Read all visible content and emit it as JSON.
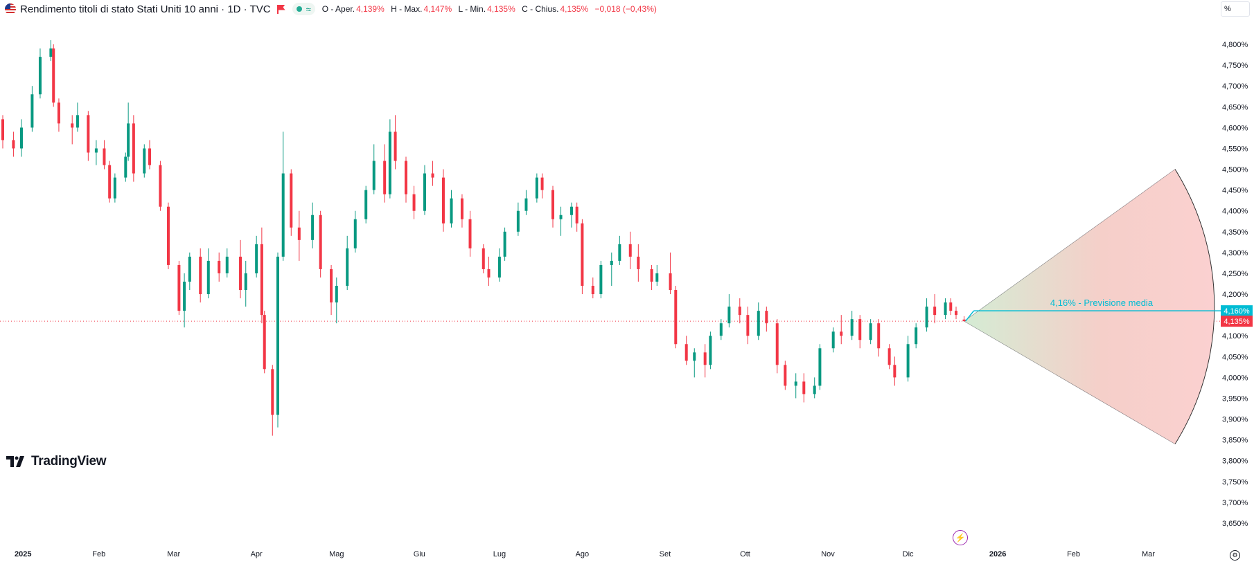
{
  "header": {
    "title": "Rendimento titoli di stato Stati Uniti 10 anni · 1D · TVC",
    "approx_symbol": "≈",
    "ohlc": {
      "o_label": "O - Aper.",
      "o_value": "4,139%",
      "h_label": "H - Max.",
      "h_value": "4,147%",
      "l_label": "L - Min.",
      "l_value": "4,135%",
      "c_label": "C - Chius.",
      "c_value": "4,135%",
      "change": "−0,018 (−0,43%)"
    }
  },
  "scale_button": "%",
  "branding": {
    "logo_text": "TradingView"
  },
  "colors": {
    "up": "#089981",
    "down": "#f23645",
    "forecast_line": "#00bcd4",
    "accent": "#2962ff"
  },
  "chart_data": {
    "type": "candlestick",
    "title": "Rendimento titoli di stato Stati Uniti 10 anni · 1D · TVC",
    "xlabel": "",
    "ylabel": "",
    "ylim": [
      3.62,
      4.84
    ],
    "y_ticks": [
      "4,800%",
      "4,750%",
      "4,700%",
      "4,650%",
      "4,600%",
      "4,550%",
      "4,500%",
      "4,450%",
      "4,400%",
      "4,350%",
      "4,300%",
      "4,250%",
      "4,200%",
      "4,150%",
      "4,100%",
      "4,050%",
      "4,000%",
      "3,950%",
      "3,900%",
      "3,850%",
      "3,800%",
      "3,750%",
      "3,700%",
      "3,650%"
    ],
    "y_tick_values": [
      4.8,
      4.75,
      4.7,
      4.65,
      4.6,
      4.55,
      4.5,
      4.45,
      4.4,
      4.35,
      4.3,
      4.25,
      4.2,
      4.15,
      4.1,
      4.05,
      4.0,
      3.95,
      3.9,
      3.85,
      3.8,
      3.75,
      3.7,
      3.65
    ],
    "x_ticks": [
      {
        "label": "2025",
        "date": "2025-01-01",
        "bold": true
      },
      {
        "label": "Feb",
        "date": "2025-02-01"
      },
      {
        "label": "Mar",
        "date": "2025-03-01"
      },
      {
        "label": "Apr",
        "date": "2025-04-01"
      },
      {
        "label": "Mag",
        "date": "2025-05-01"
      },
      {
        "label": "Giu",
        "date": "2025-06-01"
      },
      {
        "label": "Lug",
        "date": "2025-07-01"
      },
      {
        "label": "Ago",
        "date": "2025-08-01"
      },
      {
        "label": "Set",
        "date": "2025-09-01"
      },
      {
        "label": "Ott",
        "date": "2025-10-01"
      },
      {
        "label": "Nov",
        "date": "2025-11-01"
      },
      {
        "label": "Dic",
        "date": "2025-12-01"
      },
      {
        "label": "2026",
        "date": "2026-01-01",
        "bold": true
      },
      {
        "label": "Feb",
        "date": "2026-02-01"
      },
      {
        "label": "Mar",
        "date": "2026-03-01"
      }
    ],
    "x_range": [
      "2024-12-27",
      "2026-03-25"
    ],
    "series": [
      {
        "points": [
          [
            "2024-12-27",
            4.62,
            4.63,
            4.55,
            4.57
          ],
          [
            "2024-12-31",
            4.57,
            4.59,
            4.53,
            4.55
          ],
          [
            "2025-01-03",
            4.55,
            4.62,
            4.53,
            4.6
          ],
          [
            "2025-01-07",
            4.6,
            4.7,
            4.59,
            4.68
          ],
          [
            "2025-01-10",
            4.68,
            4.79,
            4.67,
            4.77
          ],
          [
            "2025-01-14",
            4.77,
            4.81,
            4.76,
            4.79
          ],
          [
            "2025-01-15",
            4.79,
            4.8,
            4.65,
            4.66
          ],
          [
            "2025-01-17",
            4.66,
            4.67,
            4.59,
            4.61
          ],
          [
            "2025-01-22",
            4.61,
            4.63,
            4.56,
            4.6
          ],
          [
            "2025-01-24",
            4.6,
            4.66,
            4.59,
            4.63
          ],
          [
            "2025-01-28",
            4.63,
            4.64,
            4.52,
            4.54
          ],
          [
            "2025-01-31",
            4.54,
            4.57,
            4.51,
            4.55
          ],
          [
            "2025-02-03",
            4.55,
            4.57,
            4.5,
            4.51
          ],
          [
            "2025-02-05",
            4.51,
            4.52,
            4.42,
            4.43
          ],
          [
            "2025-02-07",
            4.43,
            4.49,
            4.42,
            4.48
          ],
          [
            "2025-02-11",
            4.48,
            4.54,
            4.47,
            4.53
          ],
          [
            "2025-02-12",
            4.53,
            4.66,
            4.52,
            4.61
          ],
          [
            "2025-02-14",
            4.61,
            4.63,
            4.47,
            4.49
          ],
          [
            "2025-02-18",
            4.49,
            4.56,
            4.48,
            4.55
          ],
          [
            "2025-02-20",
            4.55,
            4.57,
            4.5,
            4.51
          ],
          [
            "2025-02-24",
            4.51,
            4.52,
            4.4,
            4.41
          ],
          [
            "2025-02-27",
            4.41,
            4.42,
            4.26,
            4.27
          ],
          [
            "2025-03-03",
            4.27,
            4.28,
            4.15,
            4.16
          ],
          [
            "2025-03-05",
            4.16,
            4.25,
            4.12,
            4.23
          ],
          [
            "2025-03-07",
            4.23,
            4.3,
            4.21,
            4.29
          ],
          [
            "2025-03-11",
            4.29,
            4.31,
            4.18,
            4.2
          ],
          [
            "2025-03-14",
            4.2,
            4.31,
            4.19,
            4.28
          ],
          [
            "2025-03-18",
            4.28,
            4.3,
            4.23,
            4.25
          ],
          [
            "2025-03-21",
            4.25,
            4.31,
            4.24,
            4.29
          ],
          [
            "2025-03-26",
            4.29,
            4.33,
            4.19,
            4.21
          ],
          [
            "2025-03-28",
            4.21,
            4.28,
            4.17,
            4.25
          ],
          [
            "2025-04-01",
            4.25,
            4.34,
            4.24,
            4.32
          ],
          [
            "2025-04-03",
            4.32,
            4.36,
            4.13,
            4.15
          ],
          [
            "2025-04-04",
            4.15,
            4.16,
            4.01,
            4.02
          ],
          [
            "2025-04-07",
            4.02,
            4.03,
            3.86,
            3.91
          ],
          [
            "2025-04-09",
            3.91,
            4.3,
            3.88,
            4.29
          ],
          [
            "2025-04-11",
            4.29,
            4.59,
            4.28,
            4.49
          ],
          [
            "2025-04-14",
            4.49,
            4.5,
            4.34,
            4.36
          ],
          [
            "2025-04-17",
            4.36,
            4.4,
            4.28,
            4.33
          ],
          [
            "2025-04-22",
            4.33,
            4.42,
            4.31,
            4.39
          ],
          [
            "2025-04-25",
            4.39,
            4.4,
            4.24,
            4.26
          ],
          [
            "2025-04-29",
            4.26,
            4.27,
            4.15,
            4.18
          ],
          [
            "2025-05-01",
            4.18,
            4.24,
            4.13,
            4.22
          ],
          [
            "2025-05-05",
            4.22,
            4.34,
            4.21,
            4.31
          ],
          [
            "2025-05-08",
            4.31,
            4.4,
            4.3,
            4.38
          ],
          [
            "2025-05-12",
            4.38,
            4.46,
            4.37,
            4.45
          ],
          [
            "2025-05-15",
            4.45,
            4.56,
            4.44,
            4.52
          ],
          [
            "2025-05-19",
            4.52,
            4.56,
            4.42,
            4.44
          ],
          [
            "2025-05-21",
            4.44,
            4.62,
            4.43,
            4.59
          ],
          [
            "2025-05-23",
            4.59,
            4.63,
            4.5,
            4.52
          ],
          [
            "2025-05-27",
            4.52,
            4.53,
            4.42,
            4.44
          ],
          [
            "2025-05-30",
            4.44,
            4.46,
            4.38,
            4.4
          ],
          [
            "2025-06-03",
            4.4,
            4.51,
            4.39,
            4.49
          ],
          [
            "2025-06-06",
            4.49,
            4.52,
            4.46,
            4.48
          ],
          [
            "2025-06-10",
            4.48,
            4.5,
            4.35,
            4.37
          ],
          [
            "2025-06-13",
            4.37,
            4.45,
            4.36,
            4.43
          ],
          [
            "2025-06-17",
            4.43,
            4.44,
            4.36,
            4.38
          ],
          [
            "2025-06-20",
            4.38,
            4.4,
            4.29,
            4.31
          ],
          [
            "2025-06-25",
            4.31,
            4.32,
            4.25,
            4.26
          ],
          [
            "2025-06-27",
            4.26,
            4.29,
            4.22,
            4.24
          ],
          [
            "2025-07-01",
            4.24,
            4.31,
            4.23,
            4.29
          ],
          [
            "2025-07-03",
            4.29,
            4.36,
            4.28,
            4.35
          ],
          [
            "2025-07-08",
            4.35,
            4.42,
            4.34,
            4.4
          ],
          [
            "2025-07-11",
            4.4,
            4.45,
            4.39,
            4.43
          ],
          [
            "2025-07-15",
            4.43,
            4.49,
            4.42,
            4.48
          ],
          [
            "2025-07-17",
            4.48,
            4.49,
            4.43,
            4.45
          ],
          [
            "2025-07-21",
            4.45,
            4.46,
            4.36,
            4.38
          ],
          [
            "2025-07-24",
            4.38,
            4.41,
            4.34,
            4.39
          ],
          [
            "2025-07-28",
            4.39,
            4.42,
            4.36,
            4.41
          ],
          [
            "2025-07-30",
            4.41,
            4.42,
            4.35,
            4.37
          ],
          [
            "2025-08-01",
            4.37,
            4.38,
            4.2,
            4.22
          ],
          [
            "2025-08-05",
            4.22,
            4.24,
            4.19,
            4.2
          ],
          [
            "2025-08-08",
            4.2,
            4.28,
            4.19,
            4.27
          ],
          [
            "2025-08-12",
            4.27,
            4.3,
            4.22,
            4.28
          ],
          [
            "2025-08-15",
            4.28,
            4.34,
            4.27,
            4.32
          ],
          [
            "2025-08-19",
            4.32,
            4.35,
            4.26,
            4.29
          ],
          [
            "2025-08-22",
            4.29,
            4.32,
            4.23,
            4.26
          ],
          [
            "2025-08-27",
            4.26,
            4.27,
            4.21,
            4.23
          ],
          [
            "2025-08-29",
            4.23,
            4.27,
            4.22,
            4.25
          ],
          [
            "2025-09-03",
            4.25,
            4.3,
            4.2,
            4.21
          ],
          [
            "2025-09-05",
            4.21,
            4.22,
            4.07,
            4.08
          ],
          [
            "2025-09-09",
            4.08,
            4.1,
            4.03,
            4.04
          ],
          [
            "2025-09-12",
            4.04,
            4.07,
            4.0,
            4.06
          ],
          [
            "2025-09-16",
            4.06,
            4.08,
            4.0,
            4.03
          ],
          [
            "2025-09-18",
            4.03,
            4.11,
            4.02,
            4.1
          ],
          [
            "2025-09-22",
            4.1,
            4.14,
            4.09,
            4.13
          ],
          [
            "2025-09-25",
            4.13,
            4.2,
            4.12,
            4.17
          ],
          [
            "2025-09-29",
            4.17,
            4.19,
            4.13,
            4.15
          ],
          [
            "2025-10-02",
            4.15,
            4.17,
            4.08,
            4.1
          ],
          [
            "2025-10-06",
            4.1,
            4.18,
            4.09,
            4.16
          ],
          [
            "2025-10-09",
            4.16,
            4.17,
            4.11,
            4.13
          ],
          [
            "2025-10-13",
            4.13,
            4.14,
            4.01,
            4.03
          ],
          [
            "2025-10-16",
            4.03,
            4.04,
            3.97,
            3.98
          ],
          [
            "2025-10-20",
            3.98,
            4.01,
            3.95,
            3.99
          ],
          [
            "2025-10-23",
            3.99,
            4.01,
            3.94,
            3.96
          ],
          [
            "2025-10-27",
            3.96,
            4.0,
            3.95,
            3.98
          ],
          [
            "2025-10-29",
            3.98,
            4.08,
            3.97,
            4.07
          ],
          [
            "2025-11-03",
            4.07,
            4.12,
            4.06,
            4.11
          ],
          [
            "2025-11-06",
            4.11,
            4.15,
            4.08,
            4.1
          ],
          [
            "2025-11-10",
            4.1,
            4.16,
            4.09,
            4.14
          ],
          [
            "2025-11-13",
            4.14,
            4.15,
            4.07,
            4.09
          ],
          [
            "2025-11-17",
            4.09,
            4.14,
            4.08,
            4.13
          ],
          [
            "2025-11-20",
            4.13,
            4.14,
            4.05,
            4.07
          ],
          [
            "2025-11-24",
            4.07,
            4.08,
            4.02,
            4.03
          ],
          [
            "2025-11-26",
            4.03,
            4.05,
            3.98,
            4.0
          ],
          [
            "2025-12-01",
            4.0,
            4.1,
            3.99,
            4.08
          ],
          [
            "2025-12-04",
            4.08,
            4.13,
            4.07,
            4.12
          ],
          [
            "2025-12-08",
            4.12,
            4.19,
            4.11,
            4.17
          ],
          [
            "2025-12-11",
            4.17,
            4.2,
            4.13,
            4.15
          ],
          [
            "2025-12-15",
            4.15,
            4.19,
            4.14,
            4.18
          ],
          [
            "2025-12-17",
            4.18,
            4.19,
            4.15,
            4.16
          ],
          [
            "2025-12-19",
            4.16,
            4.17,
            4.14,
            4.15
          ],
          [
            "2025-12-22",
            4.139,
            4.147,
            4.135,
            4.135
          ]
        ]
      }
    ],
    "forecast": {
      "start_date": "2025-12-22",
      "start_value": 4.135,
      "end_date": "2026-03-11",
      "average": 4.16,
      "label": "4,16% - Previsione media",
      "high": 4.5,
      "low": 3.84,
      "avg_price_label": "4,160%"
    },
    "last_price": 4.135,
    "last_price_label": "4,135%",
    "grid": false
  }
}
